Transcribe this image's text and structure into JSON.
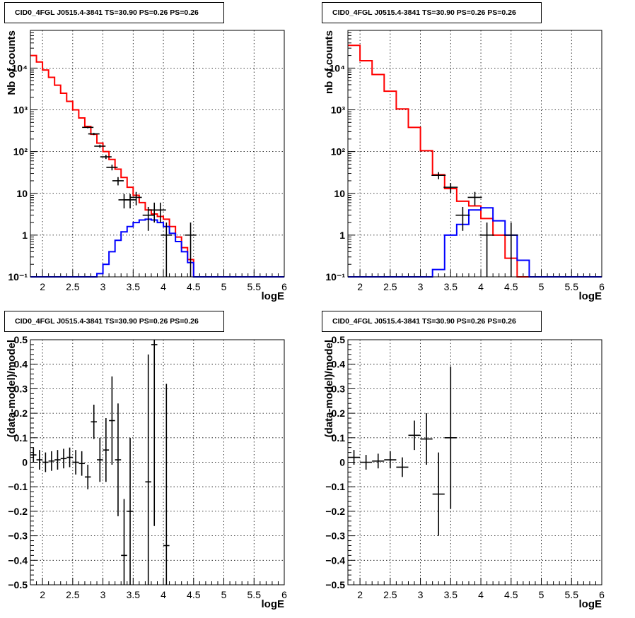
{
  "chart_data": [
    {
      "type": "histogram",
      "title": "CID0_4FGL J0515.4-3841 TS=30.90 PS=0.26 PS=0.26",
      "xlabel": "logE",
      "ylabel": "Nb of counts",
      "xlim": [
        1.8,
        6.0
      ],
      "ylim": [
        0.1,
        80000
      ],
      "yscale": "log",
      "grid": true,
      "xticks": [
        "2",
        "2.5",
        "3",
        "3.5",
        "4",
        "4.5",
        "5",
        "5.5",
        "6"
      ],
      "yticks": [
        "10⁻¹",
        "1",
        "10",
        "10²",
        "10³",
        "10⁴"
      ],
      "bin_edges": [
        1.8,
        1.9,
        2.0,
        2.1,
        2.2,
        2.3,
        2.4,
        2.5,
        2.6,
        2.7,
        2.8,
        2.9,
        3.0,
        3.1,
        3.2,
        3.3,
        3.4,
        3.5,
        3.6,
        3.7,
        3.8,
        3.9,
        4.0,
        4.1,
        4.2,
        4.3,
        4.4,
        4.5,
        4.6,
        4.7,
        4.8,
        4.9,
        5.0,
        5.1,
        5.2,
        5.3,
        5.4,
        5.5,
        5.6,
        5.7,
        5.8,
        5.9,
        6.0
      ],
      "series": [
        {
          "color": "#ff0000",
          "values": [
            20000,
            14000,
            9000,
            6000,
            3900,
            2500,
            1600,
            1000,
            640,
            400,
            260,
            160,
            100,
            65,
            38,
            24,
            14,
            9,
            6,
            4,
            3.2,
            2.8,
            2.4,
            1.6,
            0.9,
            0.5,
            0.26,
            0.1,
            0.1,
            0.1,
            0.1,
            0.1,
            0.1,
            0.1,
            0.1,
            0.1,
            0.1,
            0.1,
            0.1,
            0.1,
            0.1,
            0.1
          ]
        },
        {
          "color": "#0000ff",
          "values": [
            0.1,
            0.1,
            0.1,
            0.1,
            0.1,
            0.1,
            0.1,
            0.1,
            0.1,
            0.1,
            0.1,
            0.12,
            0.2,
            0.4,
            0.75,
            1.2,
            1.6,
            2.0,
            2.3,
            2.4,
            2.3,
            2.0,
            1.6,
            1.1,
            0.7,
            0.4,
            0.22,
            0.1,
            0.1,
            0.1,
            0.1,
            0.1,
            0.1,
            0.1,
            0.1,
            0.1,
            0.1,
            0.1,
            0.1,
            0.1,
            0.1,
            0.1
          ]
        }
      ],
      "points": [
        {
          "x": 2.75,
          "y": 380
        },
        {
          "x": 2.85,
          "y": 265
        },
        {
          "x": 2.95,
          "y": 135
        },
        {
          "x": 3.05,
          "y": 75
        },
        {
          "x": 3.15,
          "y": 42
        },
        {
          "x": 3.25,
          "y": 20
        },
        {
          "x": 3.35,
          "y": 7
        },
        {
          "x": 3.45,
          "y": 7
        },
        {
          "x": 3.55,
          "y": 8
        },
        {
          "x": 3.75,
          "y": 3
        },
        {
          "x": 3.85,
          "y": 4
        },
        {
          "x": 3.95,
          "y": 4
        },
        {
          "x": 4.05,
          "y": 1
        },
        {
          "x": 4.45,
          "y": 1
        }
      ]
    },
    {
      "type": "histogram",
      "title": "CID0_4FGL J0515.4-3841 TS=30.90 PS=0.26 PS=0.26",
      "xlabel": "logE",
      "ylabel": "nb of counts",
      "xlim": [
        1.8,
        6.0
      ],
      "ylim": [
        0.1,
        80000
      ],
      "yscale": "log",
      "grid": true,
      "xticks": [
        "2",
        "2.5",
        "3",
        "3.5",
        "4",
        "4.5",
        "5",
        "5.5",
        "6"
      ],
      "yticks": [
        "10⁻¹",
        "1",
        "10",
        "10²",
        "10³",
        "10⁴"
      ],
      "bin_edges": [
        1.8,
        2.0,
        2.2,
        2.4,
        2.6,
        2.8,
        3.0,
        3.2,
        3.4,
        3.6,
        3.8,
        4.0,
        4.2,
        4.4,
        4.6,
        4.8,
        5.0,
        5.2,
        5.4,
        5.6,
        5.8,
        6.0
      ],
      "series": [
        {
          "color": "#ff0000",
          "values": [
            35000,
            15000,
            7000,
            2800,
            1050,
            380,
            105,
            28,
            13,
            6.5,
            5,
            2.5,
            1,
            0.28,
            0.1,
            0.1,
            0.1,
            0.1,
            0.1,
            0.1,
            0.1
          ]
        },
        {
          "color": "#0000ff",
          "values": [
            0.1,
            0.1,
            0.1,
            0.1,
            0.1,
            0.1,
            0.1,
            0.15,
            1,
            1.8,
            4,
            4.5,
            2.2,
            1,
            0.25,
            0.1,
            0.1,
            0.1,
            0.1,
            0.1,
            0.1
          ]
        }
      ],
      "points": [
        {
          "x": 3.3,
          "y": 27
        },
        {
          "x": 3.5,
          "y": 14
        },
        {
          "x": 3.7,
          "y": 3
        },
        {
          "x": 3.9,
          "y": 8
        },
        {
          "x": 4.1,
          "y": 1
        },
        {
          "x": 4.5,
          "y": 1
        }
      ]
    },
    {
      "type": "scatter",
      "title": "CID0_4FGL J0515.4-3841 TS=30.90 PS=0.26 PS=0.26",
      "xlabel": "logE",
      "ylabel": "(data-model)/model",
      "xlim": [
        1.8,
        6.0
      ],
      "ylim": [
        -0.5,
        0.5
      ],
      "grid": true,
      "xticks": [
        "2",
        "2.5",
        "3",
        "3.5",
        "4",
        "4.5",
        "5",
        "5.5",
        "6"
      ],
      "yticks": [
        "−0.5",
        "−0.4",
        "−0.3",
        "−0.2",
        "−0.1",
        "0",
        "0.1",
        "0.2",
        "0.3",
        "0.4",
        "0.5"
      ],
      "xerr": 0.05,
      "points": [
        {
          "x": 1.85,
          "y": 0.03,
          "err": 0.03
        },
        {
          "x": 1.95,
          "y": 0.01,
          "err": 0.04
        },
        {
          "x": 2.05,
          "y": 0.0,
          "err": 0.04
        },
        {
          "x": 2.15,
          "y": 0.005,
          "err": 0.04
        },
        {
          "x": 2.25,
          "y": 0.01,
          "err": 0.04
        },
        {
          "x": 2.35,
          "y": 0.015,
          "err": 0.04
        },
        {
          "x": 2.45,
          "y": 0.02,
          "err": 0.04
        },
        {
          "x": 2.55,
          "y": 0.0,
          "err": 0.05
        },
        {
          "x": 2.65,
          "y": -0.005,
          "err": 0.05
        },
        {
          "x": 2.75,
          "y": -0.06,
          "err": 0.05
        },
        {
          "x": 2.85,
          "y": 0.165,
          "err": 0.07
        },
        {
          "x": 2.95,
          "y": 0.01,
          "err": 0.09
        },
        {
          "x": 3.05,
          "y": 0.05,
          "err": 0.13
        },
        {
          "x": 3.15,
          "y": 0.17,
          "err": 0.18
        },
        {
          "x": 3.25,
          "y": 0.01,
          "err": 0.23
        },
        {
          "x": 3.35,
          "y": -0.38,
          "err": 0.23
        },
        {
          "x": 3.45,
          "y": -0.2,
          "err": 0.3
        },
        {
          "x": 3.75,
          "y": -0.08,
          "err": 0.52
        },
        {
          "x": 3.85,
          "y": 0.48,
          "err": 0.74
        },
        {
          "x": 4.05,
          "y": -0.34,
          "err": 0.66
        }
      ]
    },
    {
      "type": "scatter",
      "title": "CID0_4FGL J0515.4-3841 TS=30.90 PS=0.26 PS=0.26",
      "xlabel": "logE",
      "ylabel": "(data-model)/model",
      "xlim": [
        1.8,
        6.0
      ],
      "ylim": [
        -0.5,
        0.5
      ],
      "grid": true,
      "xticks": [
        "2",
        "2.5",
        "3",
        "3.5",
        "4",
        "4.5",
        "5",
        "5.5",
        "6"
      ],
      "yticks": [
        "−0.5",
        "−0.4",
        "−0.3",
        "−0.2",
        "−0.1",
        "0",
        "0.1",
        "0.2",
        "0.3",
        "0.4",
        "0.5"
      ],
      "xerr": 0.1,
      "points": [
        {
          "x": 1.9,
          "y": 0.02,
          "err": 0.03
        },
        {
          "x": 2.1,
          "y": 0.0,
          "err": 0.03
        },
        {
          "x": 2.3,
          "y": 0.005,
          "err": 0.03
        },
        {
          "x": 2.5,
          "y": 0.01,
          "err": 0.035
        },
        {
          "x": 2.7,
          "y": -0.02,
          "err": 0.04
        },
        {
          "x": 2.9,
          "y": 0.11,
          "err": 0.06
        },
        {
          "x": 3.1,
          "y": 0.095,
          "err": 0.105
        },
        {
          "x": 3.3,
          "y": -0.13,
          "err": 0.17
        },
        {
          "x": 3.5,
          "y": 0.1,
          "err": 0.29
        }
      ]
    }
  ]
}
